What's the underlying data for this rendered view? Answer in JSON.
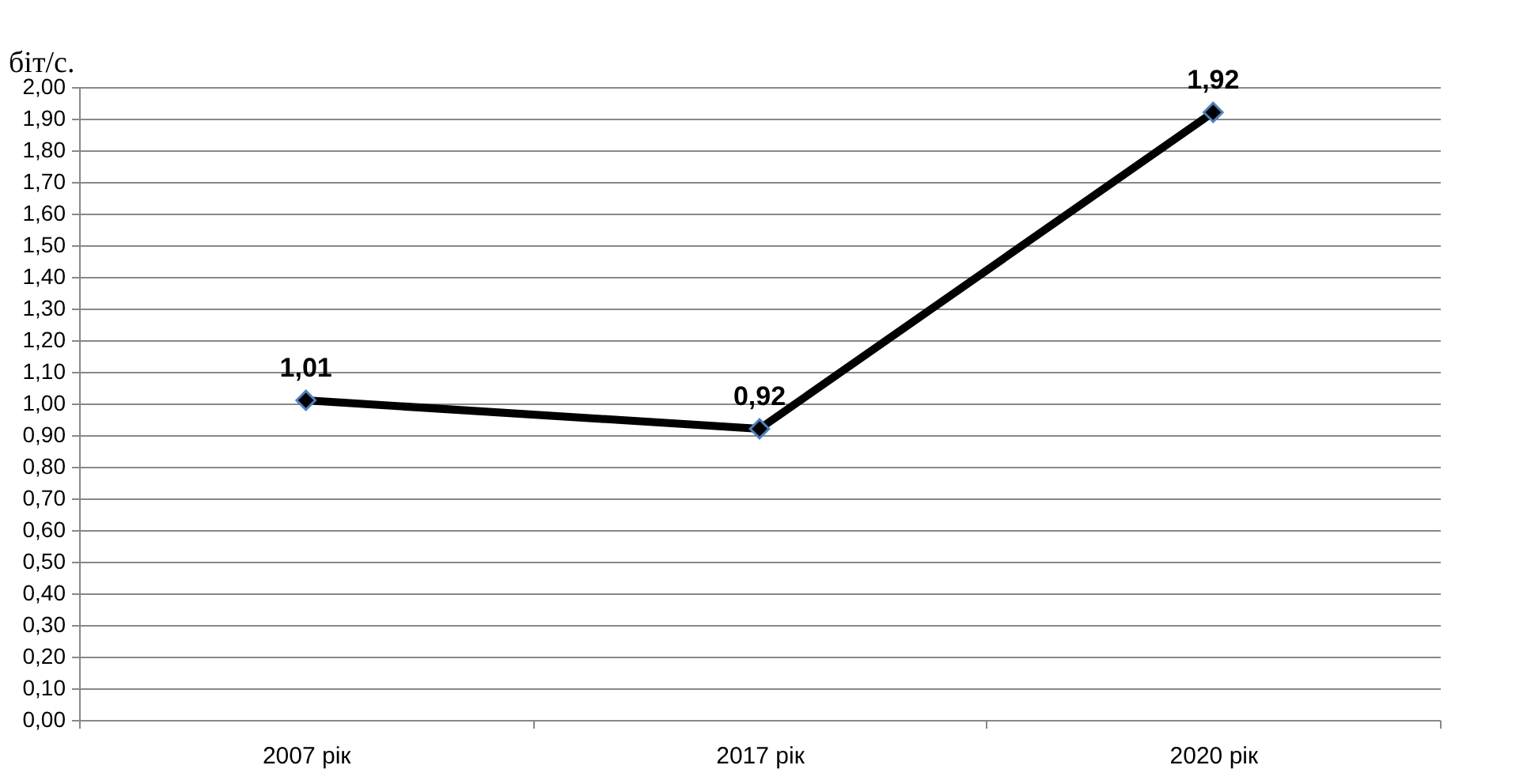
{
  "chart_data": {
    "type": "line",
    "ylabel": "біт/с.",
    "categories": [
      "2007 рік",
      "2017 рік",
      "2020 рік"
    ],
    "series": [
      {
        "color": "#000000",
        "values": [
          1.01,
          0.92,
          1.92
        ],
        "value_labels": [
          "1,01",
          "0,92",
          "1,92"
        ]
      }
    ],
    "ylim": [
      0,
      2
    ],
    "yticks": [
      {
        "value": 0,
        "label": "0,00"
      },
      {
        "value": 0.1,
        "label": "0,10"
      },
      {
        "value": 0.2,
        "label": "0,20"
      },
      {
        "value": 0.3,
        "label": "0,30"
      },
      {
        "value": 0.4,
        "label": "0,40"
      },
      {
        "value": 0.5,
        "label": "0,50"
      },
      {
        "value": 0.6,
        "label": "0,60"
      },
      {
        "value": 0.7,
        "label": "0,70"
      },
      {
        "value": 0.8,
        "label": "0,80"
      },
      {
        "value": 0.9,
        "label": "0,90"
      },
      {
        "value": 1.0,
        "label": "1,00"
      },
      {
        "value": 1.1,
        "label": "1,10"
      },
      {
        "value": 1.2,
        "label": "1,20"
      },
      {
        "value": 1.3,
        "label": "1,30"
      },
      {
        "value": 1.4,
        "label": "1,40"
      },
      {
        "value": 1.5,
        "label": "1,50"
      },
      {
        "value": 1.6,
        "label": "1,60"
      },
      {
        "value": 1.7,
        "label": "1,70"
      },
      {
        "value": 1.8,
        "label": "1,80"
      },
      {
        "value": 1.9,
        "label": "1,90"
      },
      {
        "value": 2.0,
        "label": "2,00"
      }
    ],
    "grid": "y",
    "marker": "diamond",
    "line_style": "solid"
  }
}
